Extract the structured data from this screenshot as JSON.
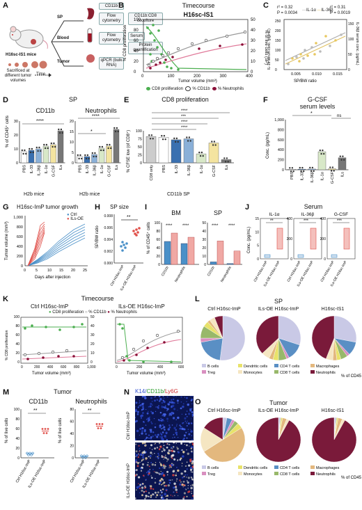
{
  "panels": {
    "A": "A",
    "B": "B",
    "C": "C",
    "D": "D",
    "E": "E",
    "F": "F",
    "G": "G",
    "H": "H",
    "I": "I",
    "J": "J",
    "K": "K",
    "L": "L",
    "M": "M",
    "N": "N",
    "O": "O"
  },
  "A": {
    "mouse": "H16sc-IS1 mice",
    "sacrificed": "Sacrificed at different tumor volumes",
    "time": "Time",
    "sp": "SP",
    "blood": "Blood",
    "tumor": "Tumor",
    "flow": "Flow cytometry",
    "coculture": "CD11b:CD8 coculture",
    "serum": "Serum",
    "protein": "Protein quantification",
    "qpcr": "qPCR (bulk RNA)",
    "cd11b": "CD11b"
  },
  "B": {
    "title": "Timecourse",
    "subtitle": "H16sc-IS1",
    "ylabel": "% CD8 proliferation",
    "y2label": "% of live cells (SP)",
    "xlabel": "Tumor volume (mm³)",
    "xticks": [
      "0",
      "100",
      "200",
      "300",
      "400"
    ],
    "yticks": [
      "0",
      "20",
      "40",
      "60",
      "80",
      "100"
    ],
    "y2ticks": [
      "0",
      "10",
      "20",
      "30",
      "40",
      "50"
    ],
    "legend": [
      "CD8 proliferation",
      "% CD11b",
      "% Neutrophils"
    ]
  },
  "C": {
    "stat1": "r² = 0.32",
    "p1": "P = 0.0034",
    "stat2": "r² = 0.31",
    "p2": "P = 0.0019",
    "leg1": "IL-1α",
    "leg2": "IL-36β",
    "ylabel": "IL-1α serum conc. (pg/mL)",
    "y2label": "IL-36β serum conc. (pg/mL)",
    "xlabel": "SP/BW ratio",
    "xticks": [
      "0.005",
      "0.010",
      "0.015"
    ],
    "yticks": [
      "0",
      "50",
      "100",
      "150",
      "200",
      "250"
    ],
    "y2ticks": [
      "0",
      "50",
      "100",
      "150"
    ]
  },
  "D": {
    "title": "SP",
    "sub1": "CD11b",
    "sub2": "Neutrophils",
    "ylabel": "% of CD45⁺ cells",
    "xlabel": "H2b mice",
    "cats": [
      "PBS",
      "IL-33",
      "IL-36β",
      "IL-1α",
      "G-CSF",
      "ILs"
    ],
    "sig1": "****",
    "sig2": "****",
    "sig3": "*",
    "yticks1": [
      "0",
      "10",
      "20",
      "30"
    ],
    "yticks2": [
      "0",
      "5",
      "10",
      "15",
      "20"
    ]
  },
  "E": {
    "title": "CD8 proliferation",
    "ylabel": "% CFSE low (of CD8⁺)",
    "xlabel": "CD11b SP",
    "cats": [
      "CD8 only",
      "PBS",
      "IL-33",
      "IL-36β",
      "IL-1α",
      "G-CSF",
      "ILs"
    ],
    "sigs": [
      "****",
      "***",
      "****",
      "****"
    ],
    "yticks": [
      "0",
      "25",
      "50",
      "75",
      "100"
    ]
  },
  "F": {
    "title": "G-CSF",
    "title2": "serum levels",
    "ylabel": "Conc. (pg/mL)",
    "cats": [
      "PBS",
      "IL-33",
      "IL-36β",
      "IL-1α",
      "G-CSF",
      "ILs"
    ],
    "sig1": "*",
    "sig2": "ns",
    "yticks": [
      "0",
      "200",
      "400",
      "600",
      "800",
      "1,000"
    ]
  },
  "G": {
    "title": "H16sc-ImP tumor growth",
    "ylabel": "Tumor volume (mm³)",
    "xlabel": "Days after injection",
    "legend": [
      "Ctrl",
      "ILs-OE"
    ],
    "xticks": [
      "0",
      "5",
      "10",
      "15",
      "20",
      "25"
    ],
    "yticks": [
      "0",
      "200",
      "400",
      "600",
      "800",
      "1,000"
    ]
  },
  "H": {
    "title": "SP size",
    "ylabel": "SP/BW ratio",
    "sig": "**",
    "cats": [
      "Ctrl H16sc-ImP",
      "ILs-OE H16sc-ImP"
    ],
    "yticks": [
      "0.000",
      "0.002",
      "0.004",
      "0.006",
      "0.008"
    ]
  },
  "I": {
    "bm": "BM",
    "sp": "SP",
    "ylabel": "% of CD45⁺ cells",
    "cats": [
      "CD11b",
      "Neutrophils"
    ],
    "sig": "****",
    "yticks1": [
      "0",
      "20",
      "40",
      "60",
      "80",
      "100"
    ],
    "yticks2": [
      "0",
      "10",
      "20",
      "30",
      "40",
      "50"
    ]
  },
  "J": {
    "title": "Serum",
    "sub": [
      "IL-1α",
      "IL-36β",
      "G-CSF"
    ],
    "ylabel": "Conc. (pg/mL)",
    "sigs": [
      "**",
      "***",
      "***"
    ],
    "cats": [
      "Ctrl H16sc-ImP",
      "ILs-OE H16sc-ImP"
    ],
    "yt1": [
      "0",
      "5",
      "10",
      "15"
    ],
    "yt2": [
      "0",
      "200",
      "400"
    ],
    "yt3": [
      "0",
      "200",
      "400"
    ]
  },
  "K": {
    "title": "Timecourse",
    "left": "Ctrl H16sc-ImP",
    "right": "ILs-OE H16sc-ImP",
    "legend": [
      "CD8 proliferation",
      "% CD11b",
      "% Neutrophils"
    ],
    "ylabel": "% CD8 proliferation",
    "y2label": "% of live cells (SP)",
    "xlabel": "Tumor volume (mm³)",
    "xticksL": [
      "0",
      "200",
      "400",
      "600",
      "800",
      "1,000"
    ],
    "xticksR": [
      "0",
      "200",
      "400",
      "600"
    ],
    "yticks": [
      "0",
      "20",
      "40",
      "60",
      "80",
      "100"
    ],
    "y2ticks": [
      "0",
      "10",
      "20",
      "30",
      "40",
      "50"
    ]
  },
  "L": {
    "title": "SP",
    "pies": [
      "Ctrl H16sc-ImP",
      "ILs-OE H16sc-ImP",
      "H16sc-IS1"
    ],
    "legend": [
      "B cells",
      "CD4 T cells",
      "Treg",
      "CD8 T cells",
      "Dendritic cells",
      "Macrophages",
      "Monocytes",
      "Neutrophils"
    ],
    "unit": "% of CD45"
  },
  "M": {
    "title": "Tumor",
    "sub1": "CD11b",
    "sub2": "Neutrophils",
    "ylabel": "% of live cells",
    "sig": "**",
    "cats": [
      "Ctrl H16sc-ImP",
      "ILs-OE H16sc-ImP"
    ],
    "yticks1": [
      "0",
      "20",
      "40",
      "60",
      "80",
      "100"
    ],
    "yticks2": [
      "0",
      "20",
      "40",
      "60",
      "80"
    ]
  },
  "N": {
    "header1": "K14/",
    "header2": "CD11b/",
    "header3": "Ly6G",
    "row1": "Ctrl H16sc-ImP",
    "row2": "ILs-OE H16sc-ImP"
  },
  "O": {
    "title": "Tumor",
    "pies": [
      "Ctrl H16sc-ImP",
      "ILs-OE H16sc-ImP",
      "H16sc-IS1"
    ],
    "legend": [
      "B cells",
      "CD4 T cells",
      "Treg",
      "CD8 T cells",
      "Dendritic cells",
      "Macrophages",
      "Monocytes",
      "Neutrophils"
    ],
    "unit": "% of CD45"
  },
  "colors": {
    "cd8": "#4caf50",
    "cd11b": "#333333",
    "neut": "#8a1038",
    "ctrl": "#4a90c8",
    "ils": "#e0504a",
    "bcell": "#c9c9e6",
    "cd4": "#5a8fc4",
    "treg": "#d98fc0",
    "cd8t": "#98b86a",
    "dc": "#e8e26a",
    "mac": "#e3b87e",
    "mono": "#f5e6c2",
    "neutpie": "#7a1a3a"
  },
  "chart_data": [
    {
      "type": "pie",
      "title": "SP Ctrl H16sc-ImP",
      "categories": [
        "B cells",
        "CD4 T cells",
        "Treg",
        "CD8 T cells",
        "Dendritic cells",
        "Macrophages",
        "Monocytes",
        "Neutrophils"
      ],
      "values": [
        52,
        20,
        3,
        9,
        4,
        2,
        4,
        6
      ]
    },
    {
      "type": "pie",
      "title": "SP ILs-OE H16sc-ImP",
      "categories": [
        "B cells",
        "CD4 T cells",
        "Treg",
        "CD8 T cells",
        "Dendritic cells",
        "Macrophages",
        "Monocytes",
        "Neutrophils"
      ],
      "values": [
        30,
        12,
        2,
        6,
        4,
        3,
        6,
        37
      ]
    },
    {
      "type": "pie",
      "title": "SP H16sc-IS1",
      "categories": [
        "B cells",
        "CD4 T cells",
        "Treg",
        "CD8 T cells",
        "Dendritic cells",
        "Macrophages",
        "Monocytes",
        "Neutrophils"
      ],
      "values": [
        28,
        10,
        2,
        5,
        3,
        3,
        5,
        44
      ]
    },
    {
      "type": "pie",
      "title": "Tumor Ctrl H16sc-ImP",
      "categories": [
        "B cells",
        "CD4 T cells",
        "Treg",
        "CD8 T cells",
        "Dendritic cells",
        "Macrophages",
        "Monocytes",
        "Neutrophils"
      ],
      "values": [
        3,
        4,
        2,
        3,
        4,
        50,
        18,
        16
      ]
    },
    {
      "type": "pie",
      "title": "Tumor ILs-OE H16sc-ImP",
      "categories": [
        "B cells",
        "CD4 T cells",
        "Treg",
        "CD8 T cells",
        "Dendritic cells",
        "Macrophages",
        "Monocytes",
        "Neutrophils"
      ],
      "values": [
        0.5,
        0.5,
        0.5,
        0.5,
        1,
        3,
        2,
        92
      ]
    },
    {
      "type": "pie",
      "title": "Tumor H16sc-IS1",
      "categories": [
        "B cells",
        "CD4 T cells",
        "Treg",
        "CD8 T cells",
        "Dendritic cells",
        "Macrophages",
        "Monocytes",
        "Neutrophils"
      ],
      "values": [
        0.5,
        0.5,
        0.5,
        0.5,
        1,
        3,
        2,
        92
      ]
    },
    {
      "type": "bar",
      "title": "D CD11b",
      "categories": [
        "PBS",
        "IL-33",
        "IL-36β",
        "IL-1α",
        "G-CSF",
        "ILs"
      ],
      "values": [
        8,
        9,
        10,
        12,
        13,
        23
      ],
      "ylim": [
        0,
        30
      ]
    },
    {
      "type": "bar",
      "title": "D Neutrophils",
      "categories": [
        "PBS",
        "IL-33",
        "IL-36β",
        "IL-1α",
        "G-CSF",
        "ILs"
      ],
      "values": [
        3,
        3,
        4,
        7,
        8,
        16
      ],
      "ylim": [
        0,
        20
      ]
    },
    {
      "type": "bar",
      "title": "E CD8 proliferation",
      "categories": [
        "CD8 only",
        "PBS",
        "IL-33",
        "IL-36β",
        "IL-1α",
        "G-CSF",
        "ILs"
      ],
      "values": [
        82,
        80,
        72,
        75,
        28,
        62,
        10
      ],
      "ylim": [
        0,
        100
      ]
    },
    {
      "type": "bar",
      "title": "F G-CSF serum",
      "categories": [
        "PBS",
        "IL-33",
        "IL-36β",
        "IL-1α",
        "G-CSF",
        "ILs"
      ],
      "values": [
        10,
        12,
        15,
        360,
        20,
        240
      ],
      "ylim": [
        0,
        1000
      ]
    },
    {
      "type": "bar",
      "title": "M CD11b",
      "categories": [
        "Ctrl H16sc-ImP",
        "ILs-OE H16sc-ImP"
      ],
      "values": [
        8,
        55
      ],
      "ylim": [
        0,
        100
      ]
    },
    {
      "type": "bar",
      "title": "M Neutrophils",
      "categories": [
        "Ctrl H16sc-ImP",
        "ILs-OE H16sc-ImP"
      ],
      "values": [
        2,
        52
      ],
      "ylim": [
        0,
        80
      ]
    }
  ]
}
